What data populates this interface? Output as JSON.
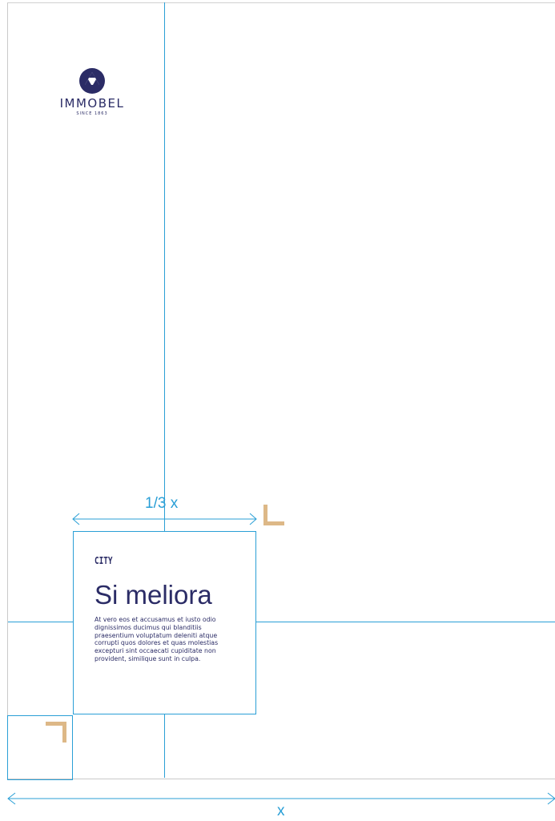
{
  "logo": {
    "name": "IMMOBEL",
    "tagline": "SINCE 1863",
    "color": "#2b2c66"
  },
  "measurements": {
    "top_label": "1/3 x",
    "bottom_label": "x"
  },
  "card": {
    "category": "CITY",
    "title": "Si meliora",
    "body": "At vero eos et accusamus et iusto odio dignissimos ducimus qui blanditiis praesentium voluptatum deleniti atque corrupti quos dolores et quas molestias excepturi sint occaecati cupiditate non provident, similique sunt in culpa."
  },
  "colors": {
    "guide": "#2a9fd6",
    "accent": "#ddb887",
    "text": "#2b2c66"
  }
}
